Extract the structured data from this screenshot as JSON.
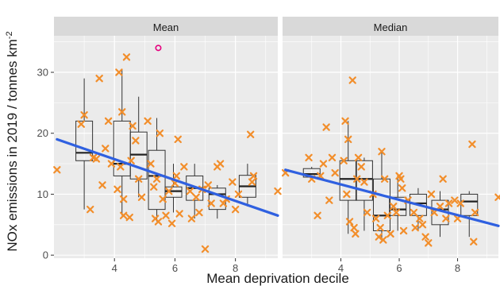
{
  "chart_data": {
    "type": "scatter",
    "xlabel": "Mean deprivation decile",
    "ylabel": "NOx emissions in  2019 / tonnes  km",
    "ylabel_sup": "-2",
    "xlim": [
      2,
      9.4
    ],
    "ylim": [
      -0.5,
      36
    ],
    "x_ticks": [
      4,
      6,
      8
    ],
    "y_ticks": [
      0,
      10,
      20,
      30
    ],
    "grid": true,
    "colors": {
      "points": "#f28e2b",
      "outlier": "#e6007e",
      "trend": "#2f60e0",
      "panel_bg": "#ebebeb",
      "strip_bg": "#d9d9d9",
      "grid": "#ffffff"
    },
    "panels": [
      {
        "name": "Mean",
        "points": [
          [
            2.1,
            14
          ],
          [
            2.9,
            21.5
          ],
          [
            3.0,
            23
          ],
          [
            3.2,
            7.5
          ],
          [
            3.3,
            16
          ],
          [
            3.4,
            15.8
          ],
          [
            3.5,
            29
          ],
          [
            3.6,
            11.5
          ],
          [
            3.7,
            17.5
          ],
          [
            3.8,
            22
          ],
          [
            3.9,
            15
          ],
          [
            4.1,
            10.8
          ],
          [
            4.15,
            30
          ],
          [
            4.2,
            14.5
          ],
          [
            4.25,
            23.5
          ],
          [
            4.3,
            9.2
          ],
          [
            4.3,
            6.5
          ],
          [
            4.4,
            32.5
          ],
          [
            4.5,
            6.2
          ],
          [
            4.55,
            15.5
          ],
          [
            4.6,
            21.2
          ],
          [
            4.7,
            18.8
          ],
          [
            4.8,
            12.5
          ],
          [
            4.9,
            9.5
          ],
          [
            5.1,
            22
          ],
          [
            5.2,
            15
          ],
          [
            5.3,
            11.2
          ],
          [
            5.35,
            6
          ],
          [
            5.4,
            12.5
          ],
          [
            5.45,
            5.5
          ],
          [
            5.5,
            20
          ],
          [
            5.6,
            9.2
          ],
          [
            5.7,
            6.5
          ],
          [
            5.8,
            10.5
          ],
          [
            5.9,
            5.2
          ],
          [
            6.0,
            11.8
          ],
          [
            6.05,
            13
          ],
          [
            6.1,
            19
          ],
          [
            6.15,
            6.8
          ],
          [
            6.3,
            14.5
          ],
          [
            6.5,
            10.5
          ],
          [
            6.55,
            6
          ],
          [
            6.7,
            9.5
          ],
          [
            6.8,
            7
          ],
          [
            6.9,
            10.8
          ],
          [
            7.0,
            1
          ],
          [
            7.1,
            11.5
          ],
          [
            7.2,
            8.5
          ],
          [
            7.4,
            14.5
          ],
          [
            7.5,
            15
          ],
          [
            7.6,
            8.5
          ],
          [
            7.7,
            9.2
          ],
          [
            7.9,
            12
          ],
          [
            8.0,
            7.5
          ],
          [
            8.1,
            10
          ],
          [
            8.5,
            19.8
          ],
          [
            8.55,
            12
          ],
          [
            8.6,
            13
          ],
          [
            9.4,
            10.5
          ]
        ],
        "outliers": [
          [
            5.45,
            34
          ]
        ],
        "boxes": [
          {
            "x": 3.0,
            "q1": 15.5,
            "median": 16.8,
            "q3": 22,
            "whisker_low": 7.5,
            "whisker_high": 29
          },
          {
            "x": 4.25,
            "q1": 13,
            "median": 15,
            "q3": 22,
            "whisker_low": 6.5,
            "whisker_high": 30.5
          },
          {
            "x": 4.8,
            "q1": 12.5,
            "median": 16.5,
            "q3": 20.2,
            "whisker_low": 9.5,
            "whisker_high": 26
          },
          {
            "x": 5.4,
            "q1": 7.5,
            "median": 13,
            "q3": 17.2,
            "whisker_low": 5.5,
            "whisker_high": 22.5
          },
          {
            "x": 5.95,
            "q1": 9.5,
            "median": 10.5,
            "q3": 11.2,
            "whisker_low": 7,
            "whisker_high": 15
          },
          {
            "x": 6.65,
            "q1": 9,
            "median": 11,
            "q3": 13,
            "whisker_low": 6,
            "whisker_high": 15
          },
          {
            "x": 7.4,
            "q1": 7.5,
            "median": 10,
            "q3": 11,
            "whisker_low": 6,
            "whisker_high": 11.5
          },
          {
            "x": 8.4,
            "q1": 9.5,
            "median": 11.3,
            "q3": 13.1,
            "whisker_low": 8,
            "whisker_high": 15
          }
        ],
        "trend": [
          [
            2.1,
            19
          ],
          [
            9.4,
            6.5
          ]
        ]
      },
      {
        "name": "Median",
        "points": [
          [
            2.1,
            13.5
          ],
          [
            2.9,
            16
          ],
          [
            3.0,
            12.5
          ],
          [
            3.2,
            6.5
          ],
          [
            3.3,
            13
          ],
          [
            3.4,
            15
          ],
          [
            3.5,
            21
          ],
          [
            3.6,
            9
          ],
          [
            3.7,
            16
          ],
          [
            3.8,
            13.5
          ],
          [
            4.1,
            15.5
          ],
          [
            4.15,
            22
          ],
          [
            4.2,
            10
          ],
          [
            4.25,
            19
          ],
          [
            4.3,
            5.5
          ],
          [
            4.4,
            28.7
          ],
          [
            4.45,
            4.5
          ],
          [
            4.5,
            3.5
          ],
          [
            4.55,
            12.5
          ],
          [
            4.6,
            16
          ],
          [
            4.7,
            14.5
          ],
          [
            4.8,
            12
          ],
          [
            4.9,
            7
          ],
          [
            5.1,
            10
          ],
          [
            5.2,
            6
          ],
          [
            5.3,
            3
          ],
          [
            5.35,
            4.5
          ],
          [
            5.4,
            17
          ],
          [
            5.45,
            2.5
          ],
          [
            5.5,
            12.5
          ],
          [
            5.6,
            6.5
          ],
          [
            5.7,
            3.5
          ],
          [
            5.8,
            8
          ],
          [
            5.9,
            7
          ],
          [
            6.0,
            13
          ],
          [
            6.05,
            12.5
          ],
          [
            6.1,
            11
          ],
          [
            6.15,
            4
          ],
          [
            6.3,
            9
          ],
          [
            6.5,
            7
          ],
          [
            6.55,
            4.5
          ],
          [
            6.7,
            6
          ],
          [
            6.8,
            5
          ],
          [
            6.9,
            3
          ],
          [
            7.0,
            2
          ],
          [
            7.1,
            10
          ],
          [
            7.2,
            7
          ],
          [
            7.4,
            8
          ],
          [
            7.5,
            12.5
          ],
          [
            7.6,
            6
          ],
          [
            7.7,
            8.5
          ],
          [
            7.9,
            9
          ],
          [
            8.0,
            6
          ],
          [
            8.1,
            8.5
          ],
          [
            8.5,
            18.2
          ],
          [
            8.55,
            2.2
          ],
          [
            8.6,
            7
          ],
          [
            9.4,
            9.5
          ]
        ],
        "outliers": [],
        "boxes": [
          {
            "x": 3.0,
            "q1": 12.8,
            "median": 13.3,
            "q3": 14.2,
            "whisker_low": 12.5,
            "whisker_high": 14.5
          },
          {
            "x": 4.25,
            "q1": 9,
            "median": 12.5,
            "q3": 15.5,
            "whisker_low": 3.5,
            "whisker_high": 22
          },
          {
            "x": 4.8,
            "q1": 9,
            "median": 12.5,
            "q3": 15.5,
            "whisker_low": 4,
            "whisker_high": 16
          },
          {
            "x": 5.4,
            "q1": 4,
            "median": 6.5,
            "q3": 12.5,
            "whisker_low": 2.5,
            "whisker_high": 17
          },
          {
            "x": 5.95,
            "q1": 6.5,
            "median": 7.5,
            "q3": 9.5,
            "whisker_low": 4,
            "whisker_high": 13
          },
          {
            "x": 6.65,
            "q1": 6.5,
            "median": 8.5,
            "q3": 10,
            "whisker_low": 4,
            "whisker_high": 11
          },
          {
            "x": 7.4,
            "q1": 5,
            "median": 7.5,
            "q3": 9,
            "whisker_low": 3,
            "whisker_high": 10.5
          },
          {
            "x": 8.4,
            "q1": 6.5,
            "median": 8.8,
            "q3": 10,
            "whisker_low": 3,
            "whisker_high": 10.5
          }
        ],
        "trend": [
          [
            2.1,
            14
          ],
          [
            9.4,
            4.8
          ]
        ]
      }
    ]
  }
}
